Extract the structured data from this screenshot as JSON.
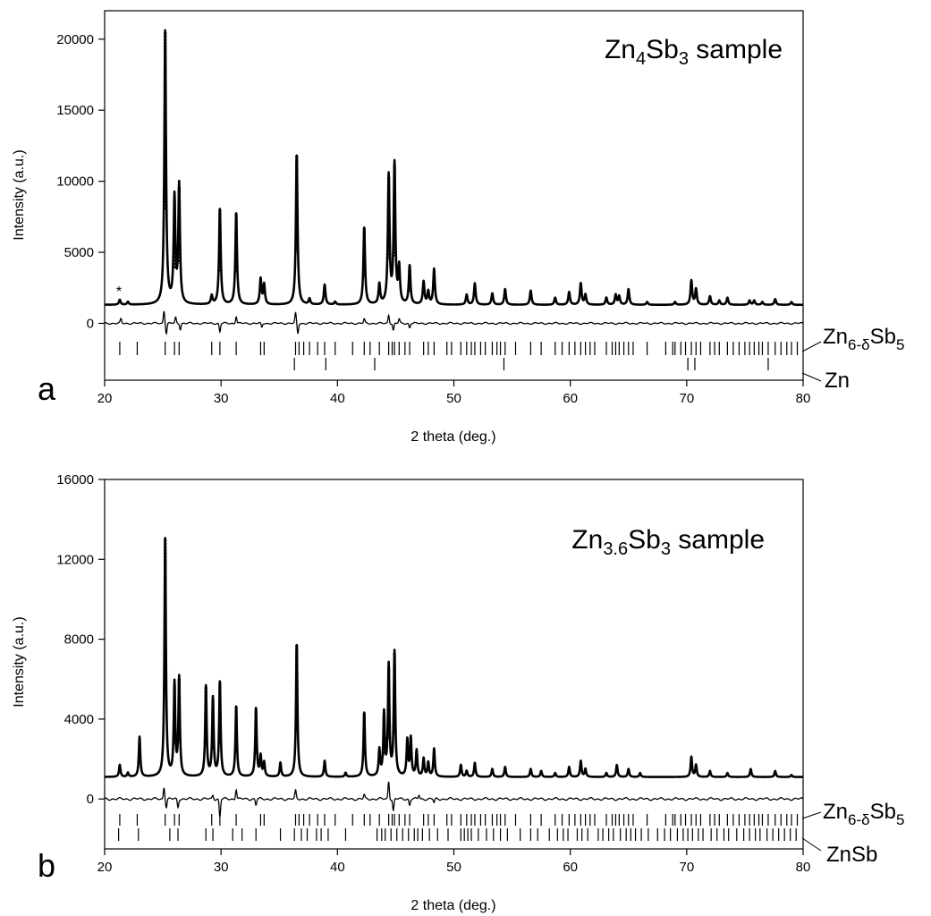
{
  "chart_data": [
    {
      "panel": "a",
      "type": "line",
      "title": "Zn4Sb3 sample",
      "title_parts": [
        "Zn",
        "4",
        "Sb",
        "3",
        " sample"
      ],
      "xlabel": "2 theta (deg.)",
      "ylabel": "Intensity (a.u.)",
      "xlim": [
        20,
        80
      ],
      "ylim": [
        -4000,
        22000
      ],
      "xticks": [
        20,
        30,
        40,
        50,
        60,
        70,
        80
      ],
      "yticks": [
        0,
        5000,
        10000,
        15000,
        20000
      ],
      "grid": false,
      "annotations": [
        {
          "text": "*",
          "x": 21.3,
          "y": 1700
        }
      ],
      "background": 1300,
      "peaks": [
        {
          "x": 21.3,
          "y": 1650
        },
        {
          "x": 22.0,
          "y": 1500
        },
        {
          "x": 25.2,
          "y": 20500
        },
        {
          "x": 26.0,
          "y": 8700
        },
        {
          "x": 26.4,
          "y": 9600
        },
        {
          "x": 29.2,
          "y": 1900
        },
        {
          "x": 29.9,
          "y": 8000
        },
        {
          "x": 31.3,
          "y": 7700
        },
        {
          "x": 33.4,
          "y": 3100
        },
        {
          "x": 33.7,
          "y": 2700
        },
        {
          "x": 36.5,
          "y": 11800
        },
        {
          "x": 37.6,
          "y": 1700
        },
        {
          "x": 38.9,
          "y": 2700
        },
        {
          "x": 39.8,
          "y": 1500
        },
        {
          "x": 42.3,
          "y": 6700
        },
        {
          "x": 43.6,
          "y": 2700
        },
        {
          "x": 44.4,
          "y": 10300
        },
        {
          "x": 44.9,
          "y": 11100
        },
        {
          "x": 45.3,
          "y": 3800
        },
        {
          "x": 46.2,
          "y": 4000
        },
        {
          "x": 47.4,
          "y": 2900
        },
        {
          "x": 47.8,
          "y": 2200
        },
        {
          "x": 48.3,
          "y": 3800
        },
        {
          "x": 51.1,
          "y": 2000
        },
        {
          "x": 51.8,
          "y": 2800
        },
        {
          "x": 53.3,
          "y": 2100
        },
        {
          "x": 54.4,
          "y": 2400
        },
        {
          "x": 56.6,
          "y": 2300
        },
        {
          "x": 58.7,
          "y": 1800
        },
        {
          "x": 59.9,
          "y": 2200
        },
        {
          "x": 60.9,
          "y": 2800
        },
        {
          "x": 61.3,
          "y": 2000
        },
        {
          "x": 63.1,
          "y": 1800
        },
        {
          "x": 63.9,
          "y": 2000
        },
        {
          "x": 64.2,
          "y": 1900
        },
        {
          "x": 65.0,
          "y": 2400
        },
        {
          "x": 66.6,
          "y": 1500
        },
        {
          "x": 69.0,
          "y": 1500
        },
        {
          "x": 70.4,
          "y": 3000
        },
        {
          "x": 70.8,
          "y": 2400
        },
        {
          "x": 72.0,
          "y": 1900
        },
        {
          "x": 72.8,
          "y": 1600
        },
        {
          "x": 73.5,
          "y": 1800
        },
        {
          "x": 75.4,
          "y": 1600
        },
        {
          "x": 75.8,
          "y": 1600
        },
        {
          "x": 76.5,
          "y": 1500
        },
        {
          "x": 77.6,
          "y": 1700
        },
        {
          "x": 79.0,
          "y": 1500
        }
      ],
      "difference": {
        "baseline": 0,
        "features": [
          {
            "x": 21.4,
            "a": 300
          },
          {
            "x": 25.1,
            "a": 900
          },
          {
            "x": 25.3,
            "a": -700
          },
          {
            "x": 26.1,
            "a": 400
          },
          {
            "x": 26.5,
            "a": -400
          },
          {
            "x": 29.9,
            "a": -600
          },
          {
            "x": 31.3,
            "a": 500
          },
          {
            "x": 33.5,
            "a": -300
          },
          {
            "x": 36.4,
            "a": 700
          },
          {
            "x": 36.6,
            "a": -700
          },
          {
            "x": 42.3,
            "a": 300
          },
          {
            "x": 44.4,
            "a": 600
          },
          {
            "x": 44.8,
            "a": -500
          },
          {
            "x": 45.3,
            "a": 300
          },
          {
            "x": 46.2,
            "a": -300
          }
        ]
      },
      "reflection_rows": [
        {
          "phase": "Zn6-δSb5",
          "label_parts": [
            "Zn",
            "6-δ",
            "Sb",
            "5"
          ],
          "positions": [
            21.3,
            22.8,
            25.2,
            26.0,
            26.4,
            29.2,
            29.9,
            31.3,
            33.4,
            33.7,
            36.4,
            36.7,
            37.1,
            37.6,
            38.3,
            38.9,
            39.8,
            41.3,
            42.3,
            42.8,
            43.6,
            44.4,
            44.7,
            44.9,
            45.3,
            45.8,
            46.2,
            47.4,
            47.8,
            48.3,
            49.4,
            49.8,
            50.6,
            51.1,
            51.5,
            51.8,
            52.3,
            52.7,
            53.3,
            53.7,
            54.0,
            54.4,
            55.3,
            56.6,
            57.5,
            58.7,
            59.3,
            59.9,
            60.4,
            60.9,
            61.3,
            61.7,
            62.1,
            63.1,
            63.6,
            63.9,
            64.2,
            64.6,
            65.0,
            65.4,
            66.6,
            68.2,
            68.8,
            69.0,
            69.5,
            69.9,
            70.4,
            70.8,
            71.2,
            72.0,
            72.4,
            72.8,
            73.5,
            74.0,
            74.5,
            75.0,
            75.4,
            75.8,
            76.2,
            76.5,
            77.0,
            77.6,
            78.1,
            78.6,
            79.0,
            79.5
          ]
        },
        {
          "phase": "Zn",
          "label_parts": [
            "Zn"
          ],
          "positions": [
            36.3,
            39.0,
            43.2,
            54.3,
            70.1,
            70.7,
            77.0
          ]
        }
      ]
    },
    {
      "panel": "b",
      "type": "line",
      "title": "Zn3.6Sb3 sample",
      "title_parts": [
        "Zn",
        "3.6",
        "Sb",
        "3",
        " sample"
      ],
      "xlabel": "2 theta (deg.)",
      "ylabel": "Intensity (a.u.)",
      "xlim": [
        20,
        80
      ],
      "ylim": [
        -2500,
        16000
      ],
      "xticks": [
        20,
        30,
        40,
        50,
        60,
        70,
        80
      ],
      "yticks": [
        0,
        4000,
        8000,
        12000,
        16000
      ],
      "grid": false,
      "background": 1100,
      "peaks": [
        {
          "x": 21.3,
          "y": 1700
        },
        {
          "x": 22.0,
          "y": 1300
        },
        {
          "x": 23.0,
          "y": 3100
        },
        {
          "x": 25.2,
          "y": 13000
        },
        {
          "x": 26.0,
          "y": 5700
        },
        {
          "x": 26.4,
          "y": 6000
        },
        {
          "x": 28.7,
          "y": 5600
        },
        {
          "x": 29.3,
          "y": 5000
        },
        {
          "x": 29.9,
          "y": 5800
        },
        {
          "x": 31.3,
          "y": 4600
        },
        {
          "x": 33.0,
          "y": 4500
        },
        {
          "x": 33.4,
          "y": 2100
        },
        {
          "x": 33.7,
          "y": 1800
        },
        {
          "x": 35.1,
          "y": 1800
        },
        {
          "x": 36.5,
          "y": 7700
        },
        {
          "x": 38.9,
          "y": 1900
        },
        {
          "x": 40.7,
          "y": 1300
        },
        {
          "x": 42.3,
          "y": 4300
        },
        {
          "x": 43.6,
          "y": 2400
        },
        {
          "x": 44.0,
          "y": 4200
        },
        {
          "x": 44.4,
          "y": 6600
        },
        {
          "x": 44.9,
          "y": 7300
        },
        {
          "x": 46.0,
          "y": 2900
        },
        {
          "x": 46.3,
          "y": 3000
        },
        {
          "x": 46.8,
          "y": 2400
        },
        {
          "x": 47.4,
          "y": 2000
        },
        {
          "x": 47.8,
          "y": 1800
        },
        {
          "x": 48.3,
          "y": 2500
        },
        {
          "x": 50.6,
          "y": 1700
        },
        {
          "x": 51.1,
          "y": 1400
        },
        {
          "x": 51.8,
          "y": 1800
        },
        {
          "x": 53.3,
          "y": 1500
        },
        {
          "x": 54.4,
          "y": 1600
        },
        {
          "x": 56.6,
          "y": 1500
        },
        {
          "x": 57.5,
          "y": 1400
        },
        {
          "x": 58.7,
          "y": 1300
        },
        {
          "x": 59.9,
          "y": 1600
        },
        {
          "x": 60.9,
          "y": 1900
        },
        {
          "x": 61.3,
          "y": 1500
        },
        {
          "x": 63.1,
          "y": 1300
        },
        {
          "x": 64.0,
          "y": 1700
        },
        {
          "x": 65.0,
          "y": 1500
        },
        {
          "x": 66.0,
          "y": 1300
        },
        {
          "x": 70.4,
          "y": 2100
        },
        {
          "x": 70.8,
          "y": 1700
        },
        {
          "x": 72.0,
          "y": 1400
        },
        {
          "x": 73.5,
          "y": 1300
        },
        {
          "x": 75.5,
          "y": 1500
        },
        {
          "x": 77.6,
          "y": 1400
        },
        {
          "x": 79.0,
          "y": 1200
        }
      ],
      "difference": {
        "baseline": 0,
        "features": [
          {
            "x": 25.1,
            "a": 600
          },
          {
            "x": 25.3,
            "a": -400
          },
          {
            "x": 26.3,
            "a": -400
          },
          {
            "x": 29.3,
            "a": 200
          },
          {
            "x": 29.9,
            "a": -900
          },
          {
            "x": 31.3,
            "a": 500
          },
          {
            "x": 33.0,
            "a": -300
          },
          {
            "x": 36.4,
            "a": 400
          },
          {
            "x": 42.3,
            "a": 200
          },
          {
            "x": 44.4,
            "a": 900
          },
          {
            "x": 44.8,
            "a": -600
          },
          {
            "x": 46.2,
            "a": -300
          },
          {
            "x": 47.0,
            "a": 200
          },
          {
            "x": 48.3,
            "a": -200
          }
        ]
      },
      "reflection_rows": [
        {
          "phase": "Zn6-δSb5",
          "label_parts": [
            "Zn",
            "6-δ",
            "Sb",
            "5"
          ],
          "positions": [
            21.3,
            22.8,
            25.2,
            26.0,
            26.4,
            29.2,
            29.9,
            31.3,
            33.4,
            33.7,
            36.4,
            36.7,
            37.1,
            37.6,
            38.3,
            38.9,
            39.8,
            41.3,
            42.3,
            42.8,
            43.6,
            44.4,
            44.7,
            44.9,
            45.3,
            45.8,
            46.2,
            47.4,
            47.8,
            48.3,
            49.4,
            49.8,
            50.6,
            51.1,
            51.5,
            51.8,
            52.3,
            52.7,
            53.3,
            53.7,
            54.0,
            54.4,
            55.3,
            56.6,
            57.5,
            58.7,
            59.3,
            59.9,
            60.4,
            60.9,
            61.3,
            61.7,
            62.1,
            63.1,
            63.6,
            63.9,
            64.2,
            64.6,
            65.0,
            65.4,
            66.6,
            68.2,
            68.8,
            69.0,
            69.5,
            69.9,
            70.4,
            70.8,
            71.2,
            72.0,
            72.4,
            72.8,
            73.5,
            74.0,
            74.5,
            75.0,
            75.4,
            75.8,
            76.2,
            76.5,
            77.0,
            77.6,
            78.1,
            78.6,
            79.0,
            79.5
          ]
        },
        {
          "phase": "ZnSb",
          "label_parts": [
            "ZnSb"
          ],
          "positions": [
            21.2,
            22.9,
            25.6,
            26.3,
            28.7,
            29.3,
            31.0,
            31.8,
            33.0,
            35.1,
            36.3,
            36.9,
            37.4,
            38.2,
            38.6,
            39.2,
            40.7,
            43.4,
            43.8,
            44.1,
            44.6,
            45.1,
            45.6,
            46.1,
            46.6,
            46.9,
            47.3,
            47.9,
            48.6,
            49.5,
            50.6,
            50.9,
            51.2,
            51.5,
            52.1,
            52.8,
            53.4,
            54.0,
            54.6,
            55.7,
            56.6,
            57.2,
            58.2,
            58.9,
            59.4,
            59.8,
            60.6,
            61.0,
            61.5,
            62.4,
            62.8,
            63.3,
            63.7,
            64.3,
            64.8,
            65.2,
            65.6,
            66.1,
            66.7,
            67.5,
            68.1,
            68.6,
            69.2,
            69.7,
            70.1,
            70.5,
            71.0,
            71.4,
            72.1,
            72.6,
            73.2,
            73.6,
            74.3,
            74.9,
            75.4,
            75.9,
            76.3,
            76.9,
            77.4,
            77.9,
            78.4,
            78.9,
            79.4
          ]
        }
      ]
    }
  ]
}
